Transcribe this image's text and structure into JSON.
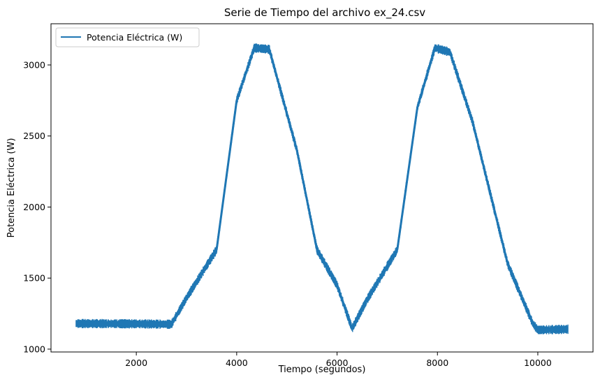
{
  "chart_data": {
    "type": "line",
    "title": "Serie de Tiempo del archivo ex_24.csv",
    "xlabel": "Tiempo (segundos)",
    "ylabel": "Potencia Eléctrica (W)",
    "xlim": [
      300,
      11100
    ],
    "ylim": [
      980,
      3290
    ],
    "x_ticks": [
      2000,
      4000,
      6000,
      8000,
      10000
    ],
    "y_ticks": [
      1000,
      1500,
      2000,
      2500,
      3000
    ],
    "legend_position": "upper-left",
    "grid": false,
    "series": [
      {
        "name": "Potencia Eléctrica (W)",
        "color": "#1f77b4",
        "noise_band_w": 60,
        "x": [
          800,
          2000,
          2700,
          3000,
          3600,
          4000,
          4350,
          4650,
          5200,
          5600,
          6000,
          6300,
          6600,
          7200,
          7600,
          7950,
          8250,
          8700,
          9400,
          9900,
          10000,
          10600
        ],
        "y": [
          1180,
          1178,
          1175,
          1360,
          1700,
          2750,
          3120,
          3110,
          2400,
          1700,
          1450,
          1145,
          1350,
          1700,
          2700,
          3120,
          3090,
          2600,
          1600,
          1180,
          1135,
          1140
        ]
      }
    ]
  }
}
